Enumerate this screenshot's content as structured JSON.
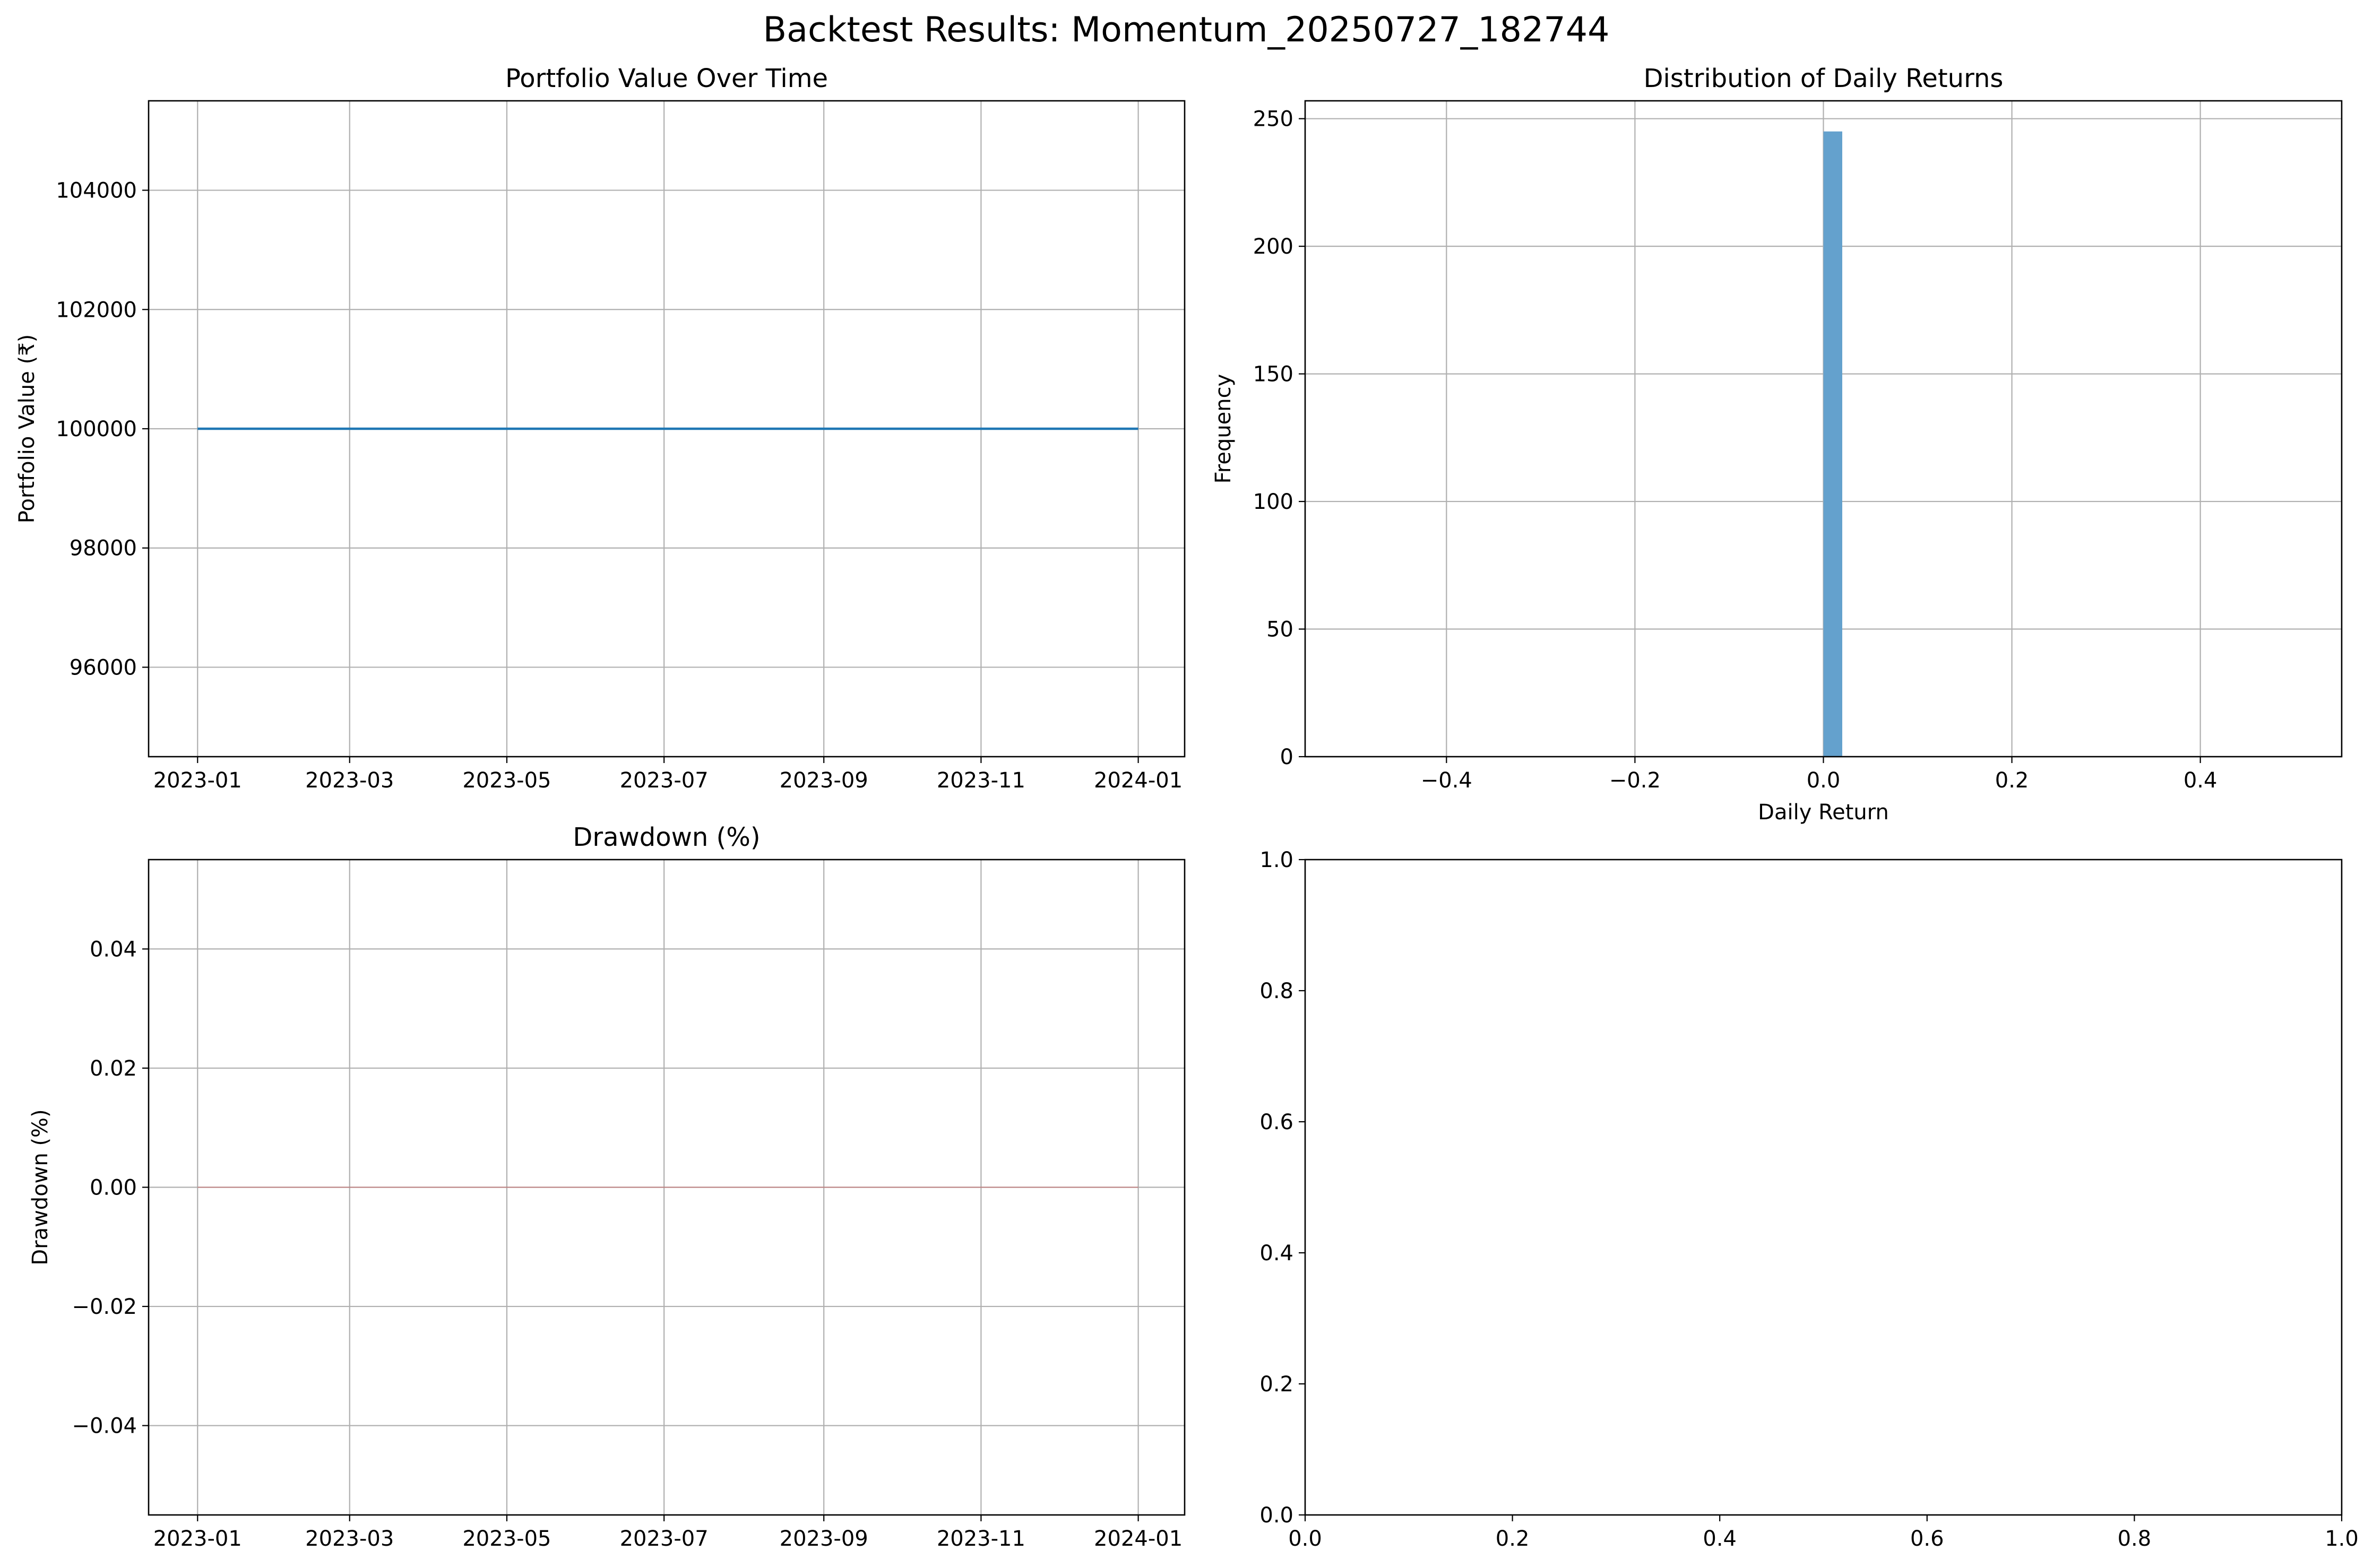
{
  "figure": {
    "title": "Backtest Results: Momentum_20250727_182744",
    "colors": {
      "line": "#1f77b4",
      "bar": "#64a1cd",
      "drawdown_fill": "#d62728",
      "grid": "#b0b0b0",
      "axes": "#000000",
      "background": "#ffffff"
    }
  },
  "chart_data": [
    {
      "id": "portfolio",
      "type": "line",
      "title": "Portfolio Value Over Time",
      "xlabel": "",
      "ylabel": "Portfolio Value (₹)",
      "x_type": "date",
      "xlim": [
        "2022-12-13",
        "2024-01-19"
      ],
      "ylim": [
        94500,
        105500
      ],
      "grid": true,
      "xticks": [
        {
          "value": "2023-01-01",
          "label": "2023-01"
        },
        {
          "value": "2023-03-01",
          "label": "2023-03"
        },
        {
          "value": "2023-05-01",
          "label": "2023-05"
        },
        {
          "value": "2023-07-01",
          "label": "2023-07"
        },
        {
          "value": "2023-09-01",
          "label": "2023-09"
        },
        {
          "value": "2023-11-01",
          "label": "2023-11"
        },
        {
          "value": "2024-01-01",
          "label": "2024-01"
        }
      ],
      "yticks": [
        {
          "value": 96000,
          "label": "96000"
        },
        {
          "value": 98000,
          "label": "98000"
        },
        {
          "value": 100000,
          "label": "100000"
        },
        {
          "value": 102000,
          "label": "102000"
        },
        {
          "value": 104000,
          "label": "104000"
        }
      ],
      "series": [
        {
          "x": [
            "2023-01-01",
            "2024-01-01"
          ],
          "y": [
            100000,
            100000
          ]
        }
      ]
    },
    {
      "id": "returns",
      "type": "bar",
      "title": "Distribution of Daily Returns",
      "xlabel": "Daily Return",
      "ylabel": "Frequency",
      "xlim": [
        -0.55,
        0.55
      ],
      "ylim": [
        0,
        257
      ],
      "grid": true,
      "xticks": [
        {
          "value": -0.4,
          "label": "−0.4"
        },
        {
          "value": -0.2,
          "label": "−0.2"
        },
        {
          "value": 0.0,
          "label": "0.0"
        },
        {
          "value": 0.2,
          "label": "0.2"
        },
        {
          "value": 0.4,
          "label": "0.4"
        }
      ],
      "yticks": [
        {
          "value": 0,
          "label": "0"
        },
        {
          "value": 50,
          "label": "50"
        },
        {
          "value": 100,
          "label": "100"
        },
        {
          "value": 150,
          "label": "150"
        },
        {
          "value": 200,
          "label": "200"
        },
        {
          "value": 250,
          "label": "250"
        }
      ],
      "bins": [
        {
          "from": 0.0,
          "to": 0.02,
          "count": 245
        }
      ]
    },
    {
      "id": "drawdown",
      "type": "area",
      "title": "Drawdown (%)",
      "xlabel": "",
      "ylabel": "Drawdown (%)",
      "x_type": "date",
      "xlim": [
        "2022-12-13",
        "2024-01-19"
      ],
      "ylim": [
        -0.055,
        0.055
      ],
      "grid": true,
      "xticks": [
        {
          "value": "2023-01-01",
          "label": "2023-01"
        },
        {
          "value": "2023-03-01",
          "label": "2023-03"
        },
        {
          "value": "2023-05-01",
          "label": "2023-05"
        },
        {
          "value": "2023-07-01",
          "label": "2023-07"
        },
        {
          "value": "2023-09-01",
          "label": "2023-09"
        },
        {
          "value": "2023-11-01",
          "label": "2023-11"
        },
        {
          "value": "2024-01-01",
          "label": "2024-01"
        }
      ],
      "yticks": [
        {
          "value": -0.04,
          "label": "−0.04"
        },
        {
          "value": -0.02,
          "label": "−0.02"
        },
        {
          "value": 0.0,
          "label": "0.00"
        },
        {
          "value": 0.02,
          "label": "0.02"
        },
        {
          "value": 0.04,
          "label": "0.04"
        }
      ],
      "series": [
        {
          "x": [
            "2023-01-01",
            "2024-01-01"
          ],
          "y": [
            0,
            0
          ]
        }
      ]
    },
    {
      "id": "empty",
      "type": "scatter",
      "title": "",
      "xlabel": "",
      "ylabel": "",
      "xlim": [
        0,
        1
      ],
      "ylim": [
        0,
        1
      ],
      "grid": false,
      "xticks": [
        {
          "value": 0.0,
          "label": "0.0"
        },
        {
          "value": 0.2,
          "label": "0.2"
        },
        {
          "value": 0.4,
          "label": "0.4"
        },
        {
          "value": 0.6,
          "label": "0.6"
        },
        {
          "value": 0.8,
          "label": "0.8"
        },
        {
          "value": 1.0,
          "label": "1.0"
        }
      ],
      "yticks": [
        {
          "value": 0.0,
          "label": "0.0"
        },
        {
          "value": 0.2,
          "label": "0.2"
        },
        {
          "value": 0.4,
          "label": "0.4"
        },
        {
          "value": 0.6,
          "label": "0.6"
        },
        {
          "value": 0.8,
          "label": "0.8"
        },
        {
          "value": 1.0,
          "label": "1.0"
        }
      ],
      "series": []
    }
  ]
}
